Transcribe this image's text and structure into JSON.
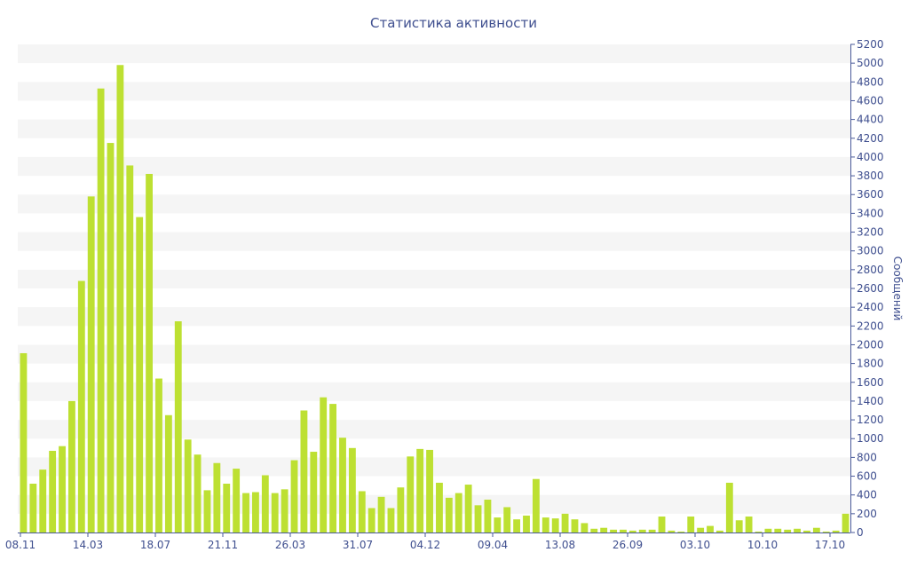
{
  "chart_data": {
    "type": "bar",
    "title": "Статистика активности",
    "xlabel": "",
    "ylabel": "Сообщений",
    "ylim": [
      0,
      5200
    ],
    "y_ticks": [
      0,
      200,
      400,
      600,
      800,
      1000,
      1200,
      1400,
      1600,
      1800,
      2000,
      2200,
      2400,
      2600,
      2800,
      3000,
      3200,
      3400,
      3600,
      3800,
      4000,
      4200,
      4400,
      4600,
      4800,
      5000,
      5200
    ],
    "y_axis_side": "right",
    "grid": "horizontal alternating bands",
    "legend": "none",
    "x_tick_labels": [
      "08.11",
      "14.03",
      "18.07",
      "21.11",
      "26.03",
      "31.07",
      "04.12",
      "09.04",
      "13.08",
      "26.09",
      "03.10",
      "10.10",
      "17.10"
    ],
    "values": [
      1910,
      520,
      670,
      870,
      920,
      1400,
      2680,
      3580,
      4730,
      4150,
      4980,
      3910,
      3360,
      3820,
      1640,
      1250,
      2250,
      990,
      830,
      450,
      740,
      520,
      680,
      420,
      430,
      610,
      420,
      460,
      770,
      1300,
      860,
      1440,
      1370,
      1010,
      900,
      440,
      260,
      380,
      260,
      480,
      810,
      890,
      880,
      530,
      370,
      420,
      510,
      290,
      350,
      160,
      270,
      140,
      180,
      570,
      160,
      150,
      200,
      140,
      100,
      40,
      50,
      30,
      30,
      20,
      30,
      30,
      170,
      20,
      10,
      170,
      50,
      70,
      20,
      530,
      130,
      170,
      10,
      40,
      40,
      30,
      40,
      20,
      50,
      10,
      20,
      200
    ]
  },
  "colors": {
    "bar": "#bde032",
    "text": "#3f4f8f",
    "band": "#f5f5f5",
    "axis": "#4a5a9a"
  }
}
